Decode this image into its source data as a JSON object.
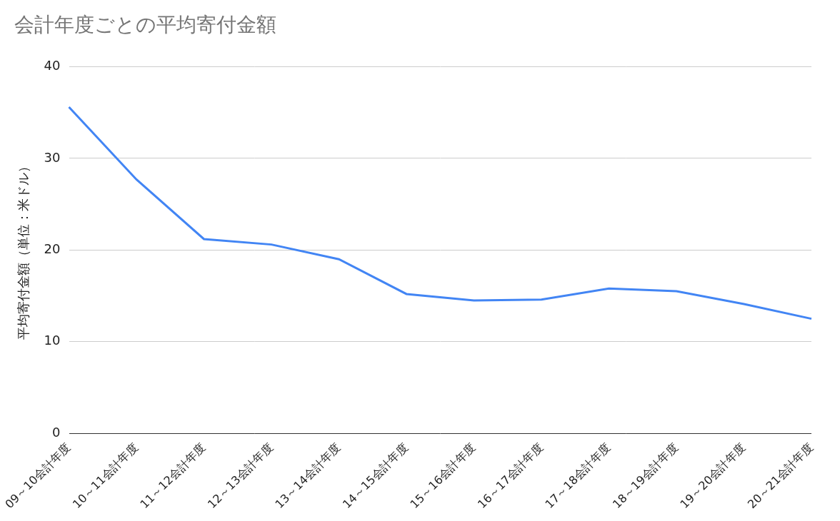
{
  "chart_data": {
    "type": "line",
    "title": "会計年度ごとの平均寄付金額",
    "y_label": "平均寄付金額（単位：米ドル）",
    "categories": [
      "09～10会計年度",
      "10～11会計年度",
      "11～12会計年度",
      "12～13会計年度",
      "13～14会計年度",
      "14～15会計年度",
      "15～16会計年度",
      "16～17会計年度",
      "17～18会計年度",
      "18～19会計年度",
      "19～20会計年度",
      "20～21会計年度"
    ],
    "values": [
      35.6,
      27.7,
      21.2,
      20.6,
      19.0,
      15.2,
      14.5,
      14.6,
      15.8,
      15.5,
      14.1,
      12.5
    ],
    "color": "#4285f4",
    "ylim": [
      0,
      40
    ],
    "yticks": [
      0,
      10,
      20,
      30,
      40
    ],
    "grid": true
  }
}
